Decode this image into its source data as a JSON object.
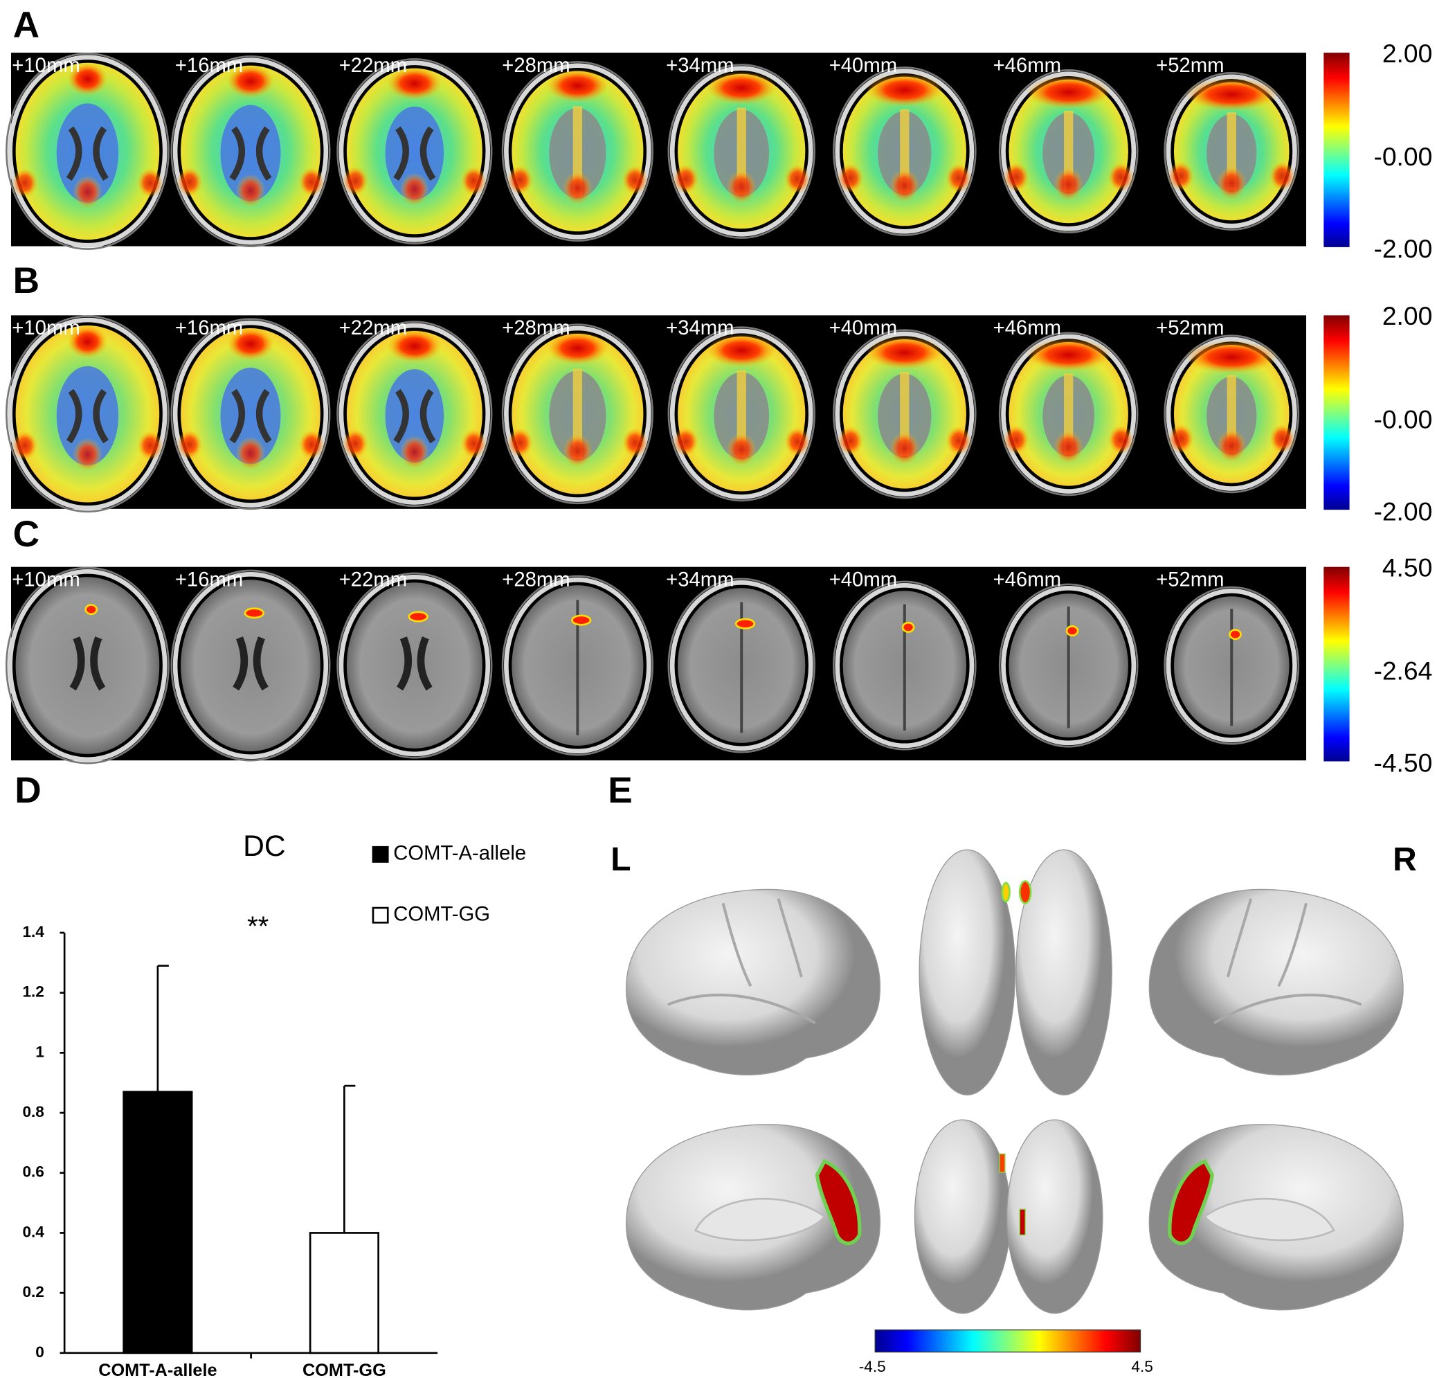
{
  "panels": [
    {
      "label": "A",
      "slices": [
        "+10mm",
        "+16mm",
        "+22mm",
        "+28mm",
        "+34mm",
        "+40mm",
        "+46mm",
        "+52mm"
      ],
      "colorbar_labels": [
        "2.00",
        "-0.00",
        "-2.00"
      ]
    },
    {
      "label": "B",
      "slices": [
        "+10mm",
        "+16mm",
        "+22mm",
        "+28mm",
        "+34mm",
        "+40mm",
        "+46mm",
        "+52mm"
      ],
      "colorbar_labels": [
        "2.00",
        "-0.00",
        "-2.00"
      ]
    },
    {
      "label": "C",
      "slices": [
        "+10mm",
        "+16mm",
        "+22mm",
        "+28mm",
        "+34mm",
        "+40mm",
        "+46mm",
        "+52mm"
      ],
      "colorbar_labels": [
        "4.50",
        "-2.64",
        "-4.50"
      ]
    }
  ],
  "chart_data": {
    "type": "bar",
    "panel_label": "D",
    "title": "DC",
    "annotation": "**",
    "categories": [
      "COMT-A-allele",
      "COMT-GG"
    ],
    "values": [
      0.87,
      0.4
    ],
    "errors": [
      0.42,
      0.49
    ],
    "colors": [
      "#000000",
      "#ffffff"
    ],
    "legend": [
      "COMT-A-allele",
      "COMT-GG"
    ],
    "ylim": [
      0,
      1.4
    ],
    "yticks": [
      0,
      0.2,
      0.4,
      0.6,
      0.8,
      1,
      1.2,
      1.4
    ]
  },
  "surface": {
    "label": "E",
    "left": "L",
    "right": "R",
    "colorbar_labels": [
      "-4.5",
      "4.5"
    ]
  }
}
